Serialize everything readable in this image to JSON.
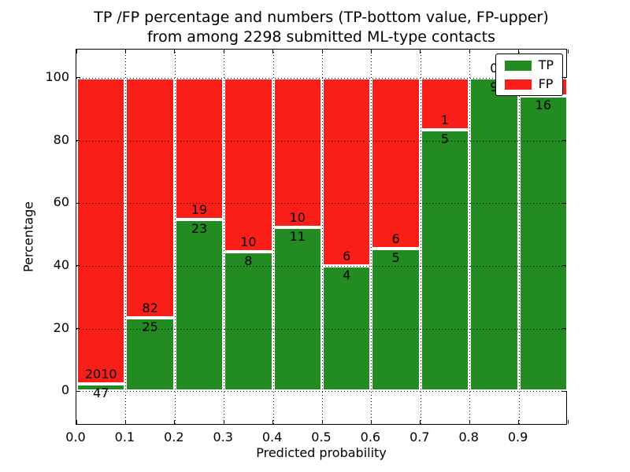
{
  "figure": {
    "title": "TP /FP percentage and numbers (TP-bottom value, FP-upper)",
    "subtitle": "from among 2298 submitted ML-type contacts"
  },
  "legend": {
    "position": "upper right",
    "entries": [
      {
        "label": "TP",
        "color": "#228b22"
      },
      {
        "label": "FP",
        "color": "#fa1e19"
      }
    ]
  },
  "chart_data": {
    "type": "bar",
    "stacked": true,
    "normalized": "each 0.1-wide bin scaled to 100%",
    "title": "TP /FP percentage and numbers (TP-bottom value, FP-upper) from among 2298 submitted ML-type contacts",
    "xlabel": "Predicted probability",
    "ylabel": "Percentage",
    "total_contacts": 2298,
    "bin_width": 0.1,
    "bin_starts": [
      0.0,
      0.1,
      0.2,
      0.3,
      0.4,
      0.5,
      0.6,
      0.7,
      0.8,
      0.9
    ],
    "x_tick_labels": [
      "0.0",
      "0.1",
      "0.2",
      "0.3",
      "0.4",
      "0.5",
      "0.6",
      "0.7",
      "0.8",
      "0.9"
    ],
    "y_ticks": [
      0,
      20,
      40,
      60,
      80,
      100
    ],
    "y_tick_labels": [
      "0",
      "20",
      "40",
      "60",
      "80",
      "100"
    ],
    "xlim": [
      0.0,
      1.0
    ],
    "ylim": [
      -11,
      109
    ],
    "grid": true,
    "grid_style": "dotted",
    "legend_position": "upper right",
    "series": [
      {
        "name": "TP",
        "color": "#228b22",
        "counts": [
          47,
          25,
          23,
          8,
          11,
          4,
          5,
          5,
          9,
          16
        ]
      },
      {
        "name": "FP",
        "color": "#fa1e19",
        "counts": [
          2010,
          82,
          19,
          10,
          10,
          6,
          6,
          1,
          0,
          1
        ]
      }
    ],
    "tp_percentages": [
      2.3,
      23.4,
      54.8,
      44.4,
      52.4,
      40.0,
      45.5,
      83.3,
      100.0,
      94.1
    ]
  }
}
